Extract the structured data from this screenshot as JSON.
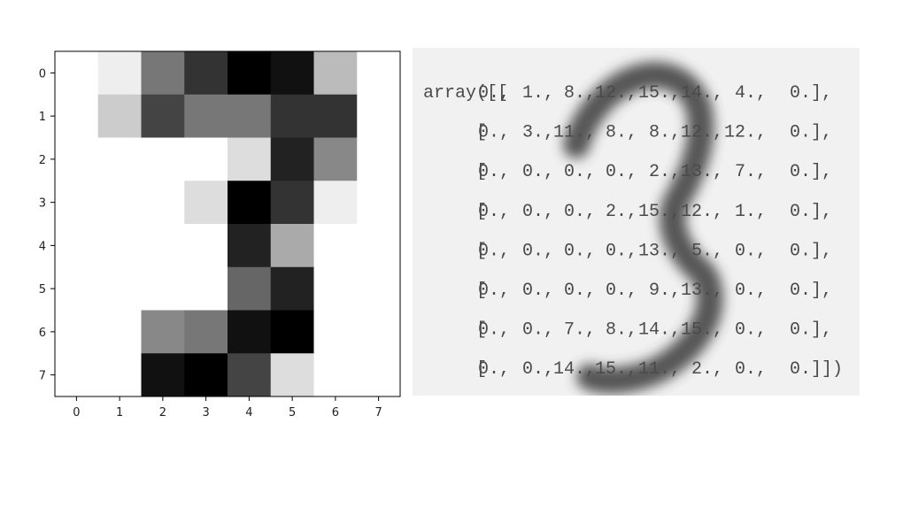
{
  "chart_data": [
    {
      "type": "heatmap",
      "colormap": "gray_r",
      "vmin": 0,
      "vmax": 15,
      "x_ticks": [
        "0",
        "1",
        "2",
        "3",
        "4",
        "5",
        "6",
        "7"
      ],
      "y_ticks": [
        "0",
        "1",
        "2",
        "3",
        "4",
        "5",
        "6",
        "7"
      ],
      "grid": false,
      "values": [
        [
          0,
          1,
          8,
          12,
          15,
          14,
          4,
          0
        ],
        [
          0,
          3,
          11,
          8,
          8,
          12,
          12,
          0
        ],
        [
          0,
          0,
          0,
          0,
          2,
          13,
          7,
          0
        ],
        [
          0,
          0,
          0,
          2,
          15,
          12,
          1,
          0
        ],
        [
          0,
          0,
          0,
          0,
          13,
          5,
          0,
          0
        ],
        [
          0,
          0,
          0,
          0,
          9,
          13,
          0,
          0
        ],
        [
          0,
          0,
          7,
          8,
          14,
          15,
          0,
          0
        ],
        [
          0,
          0,
          14,
          15,
          11,
          2,
          0,
          0
        ]
      ]
    },
    {
      "type": "table",
      "prefix": "array([[",
      "row_open": "[",
      "suffix_row": "],",
      "suffix_last": "]])",
      "digit_watermark": "3",
      "cells": [
        [
          "0.,",
          "1.,",
          "8.,",
          "12.,",
          "15.,",
          "14.,",
          "4.,",
          "0."
        ],
        [
          "0.,",
          "3.,",
          "11.,",
          "8.,",
          "8.,",
          "12.,",
          "12.,",
          "0."
        ],
        [
          "0.,",
          "0.,",
          "0.,",
          "0.,",
          "2.,",
          "13.,",
          "7.,",
          "0."
        ],
        [
          "0.,",
          "0.,",
          "0.,",
          "2.,",
          "15.,",
          "12.,",
          "1.,",
          "0."
        ],
        [
          "0.,",
          "0.,",
          "0.,",
          "0.,",
          "13.,",
          "5.,",
          "0.,",
          "0."
        ],
        [
          "0.,",
          "0.,",
          "0.,",
          "0.,",
          "9.,",
          "13.,",
          "0.,",
          "0."
        ],
        [
          "0.,",
          "0.,",
          "7.,",
          "8.,",
          "14.,",
          "15.,",
          "0.,",
          "0."
        ],
        [
          "0.,",
          "0.,",
          "14.,",
          "15.,",
          "11.,",
          "2.,",
          "0.,",
          "0."
        ]
      ]
    }
  ],
  "colors": {
    "panel_background": "#f1f1f1",
    "code_text": "#4a4a4a",
    "watermark": "#3a3a3a"
  }
}
